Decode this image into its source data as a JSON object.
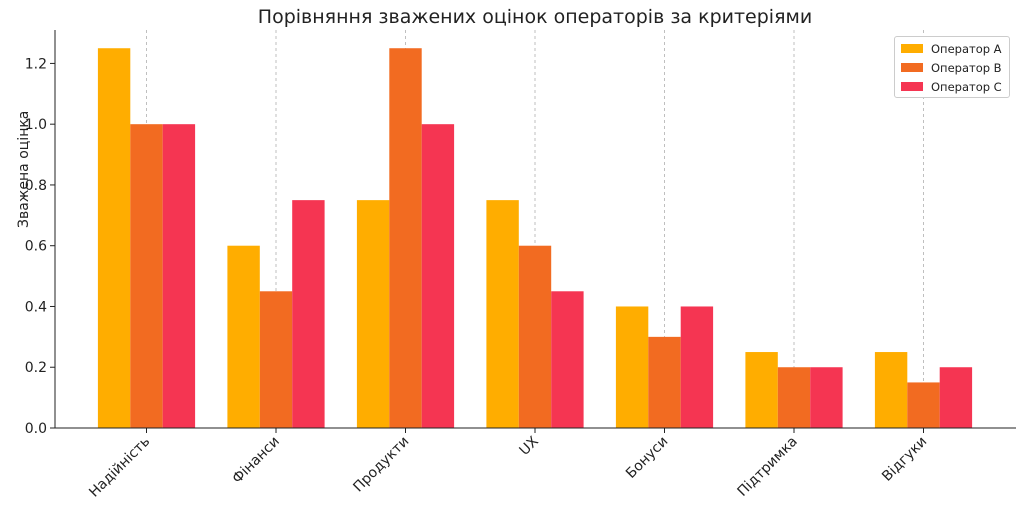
{
  "chart_data": {
    "type": "bar",
    "title": "Порівняння зважених оцінок операторів за критеріями",
    "xlabel": "",
    "ylabel": "Зважена оцінка",
    "categories": [
      "Надійність",
      "Фінанси",
      "Продукти",
      "UX",
      "Бонуси",
      "Підтримка",
      "Відгуки"
    ],
    "series": [
      {
        "name": "Оператор A",
        "color": "#ffad00",
        "values": [
          1.25,
          0.6,
          0.75,
          0.75,
          0.4,
          0.25,
          0.25
        ]
      },
      {
        "name": "Оператор B",
        "color": "#f26b21",
        "values": [
          1.0,
          0.45,
          1.25,
          0.6,
          0.3,
          0.2,
          0.15
        ]
      },
      {
        "name": "Оператор C",
        "color": "#f53552",
        "values": [
          1.0,
          0.75,
          1.0,
          0.45,
          0.4,
          0.2,
          0.2
        ]
      }
    ],
    "ylim": [
      0,
      1.31
    ],
    "yticks": [
      "0.0",
      "0.2",
      "0.4",
      "0.6",
      "0.8",
      "1.0",
      "1.2"
    ],
    "grid": "vertical dashed at categories",
    "legend_position": "top-right"
  }
}
